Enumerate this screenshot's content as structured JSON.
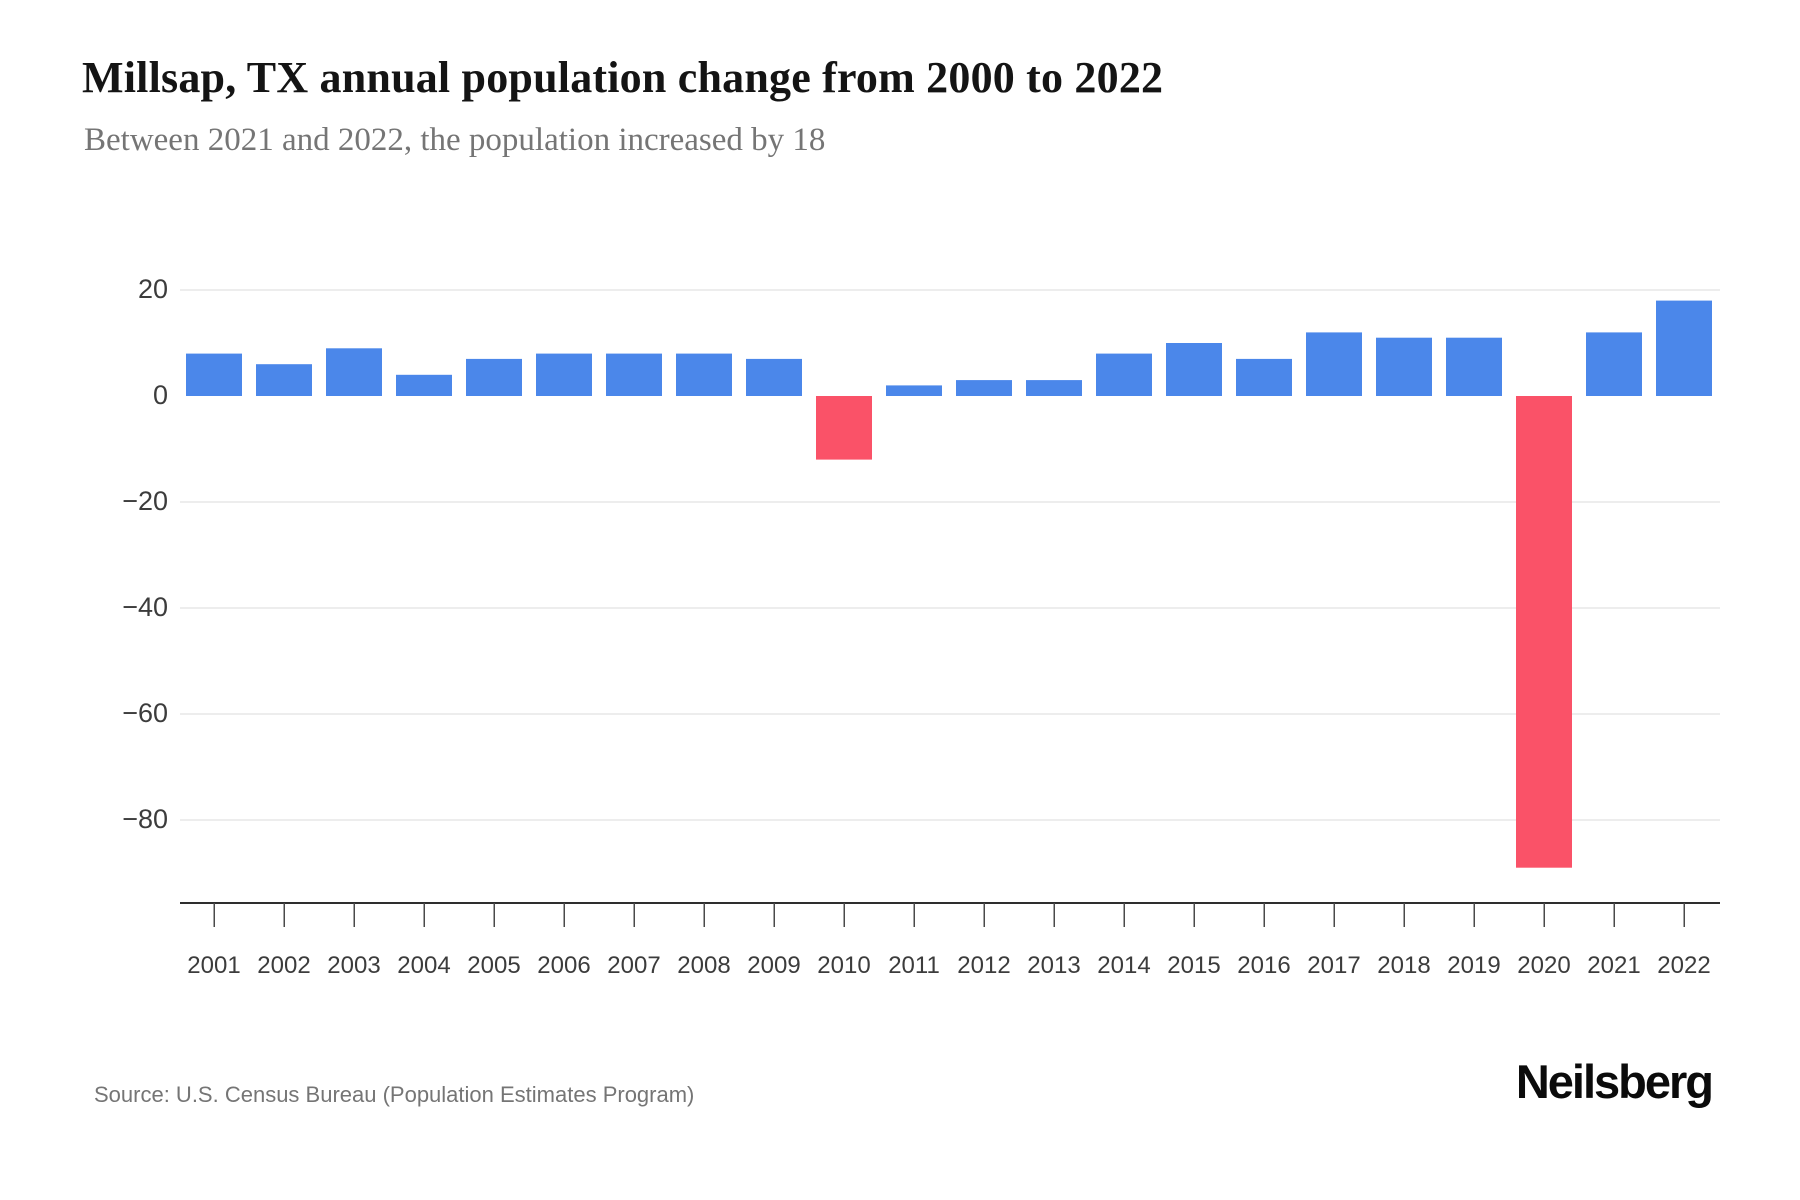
{
  "chart_data": {
    "type": "bar",
    "title": "Millsap, TX annual population change from 2000 to 2022",
    "subtitle": "Between 2021 and 2022, the population increased by 18",
    "categories": [
      "2001",
      "2002",
      "2003",
      "2004",
      "2005",
      "2006",
      "2007",
      "2008",
      "2009",
      "2010",
      "2011",
      "2012",
      "2013",
      "2014",
      "2015",
      "2016",
      "2017",
      "2018",
      "2019",
      "2020",
      "2021",
      "2022"
    ],
    "values": [
      8,
      6,
      9,
      4,
      7,
      8,
      8,
      8,
      7,
      -12,
      2,
      3,
      3,
      8,
      10,
      7,
      12,
      11,
      11,
      -89,
      12,
      18
    ],
    "xlabel": "",
    "ylabel": "",
    "yticks": [
      20,
      0,
      -20,
      -40,
      -60,
      -80
    ],
    "gridlines": [
      20,
      -20,
      -40,
      -60,
      -80
    ],
    "ylim": [
      -95,
      25
    ],
    "grid": true,
    "legend": false,
    "colors": {
      "positive_bar": "#4b87ea",
      "negative_bar": "#fa5268",
      "gridline": "#ededed",
      "axis_line": "#2e2e2e",
      "tick_label": "#3c3c3c"
    }
  },
  "footer": {
    "source": "Source: U.S. Census Bureau (Population Estimates Program)",
    "brand": "Neilsberg"
  }
}
